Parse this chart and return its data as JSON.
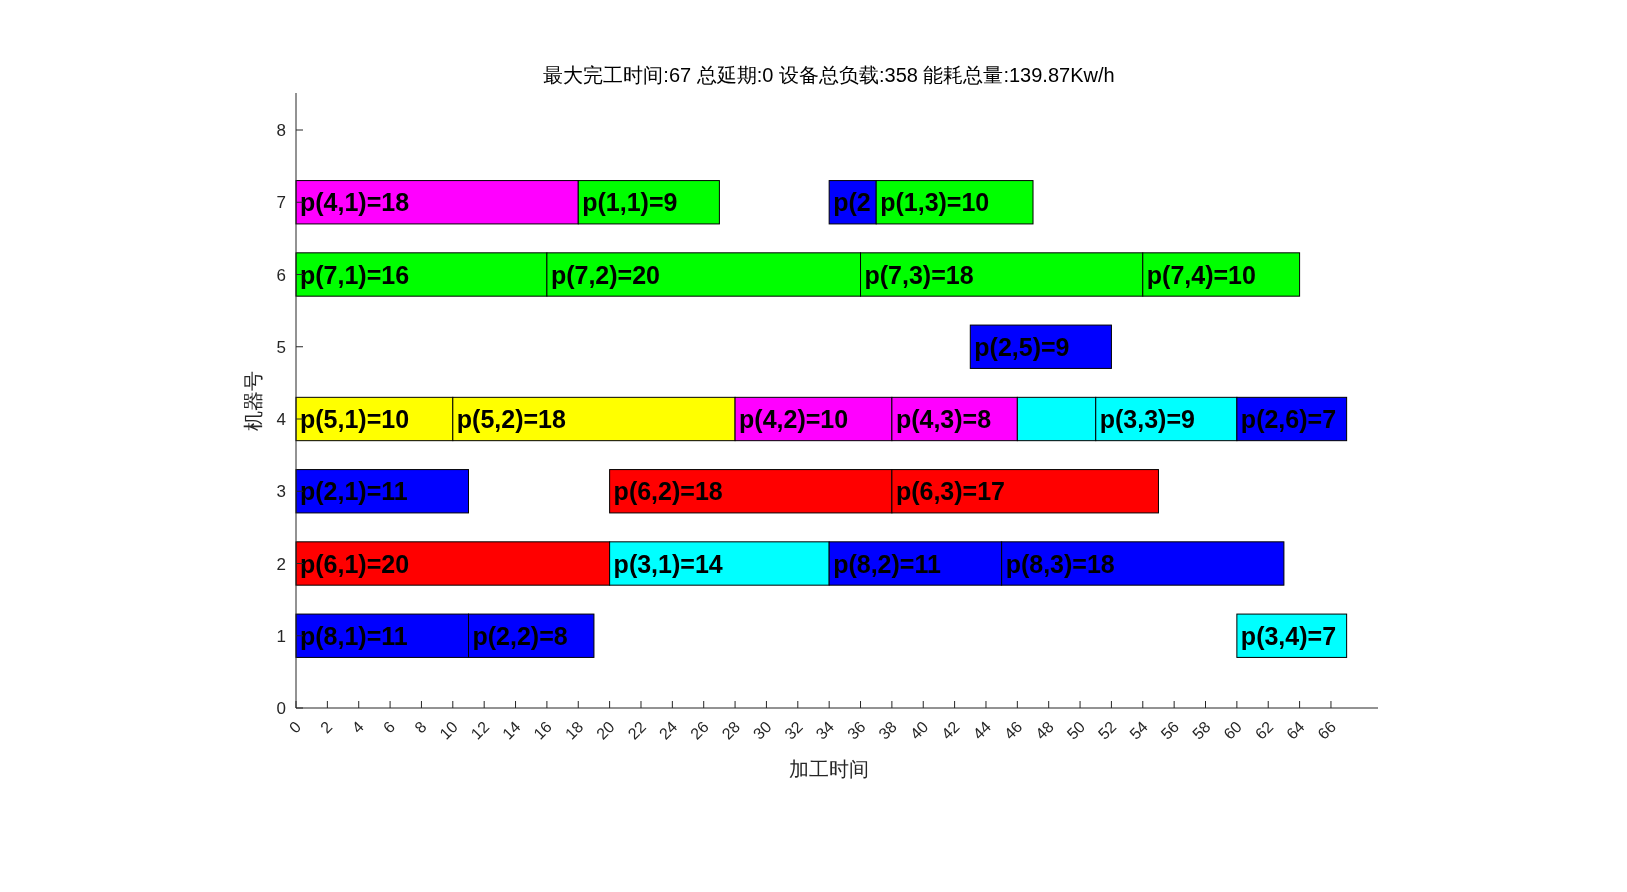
{
  "chart_data": {
    "type": "bar",
    "orientation": "horizontal",
    "title": "最大完工时间:67  总延期:0 设备总负载:358 能耗总量:139.87Kw/h",
    "xlabel": "加工时间",
    "ylabel": "机器号",
    "categories": [
      "8",
      "7",
      "6",
      "5",
      "4",
      "3",
      "2",
      "1",
      "0"
    ],
    "xlim": [
      0,
      69
    ],
    "xticks": [
      0,
      2,
      4,
      6,
      8,
      10,
      12,
      14,
      16,
      18,
      20,
      22,
      24,
      26,
      28,
      30,
      32,
      34,
      36,
      38,
      40,
      42,
      44,
      46,
      48,
      50,
      52,
      54,
      56,
      58,
      60,
      62,
      64,
      66
    ],
    "series": [
      {
        "color": "#ff00ff",
        "values": [
          null,
          18,
          null,
          null,
          null,
          null,
          null,
          null,
          null
        ],
        "base": [
          null,
          0,
          null,
          null,
          null,
          null,
          null,
          null,
          null
        ],
        "value_labels": [
          null,
          "p(4,1)=18",
          null,
          null,
          null,
          null,
          null,
          null,
          null
        ]
      },
      {
        "color": "#00ff00",
        "values": [
          null,
          9,
          null,
          null,
          null,
          null,
          null,
          null,
          null
        ],
        "base": [
          null,
          18,
          null,
          null,
          null,
          null,
          null,
          null,
          null
        ],
        "value_labels": [
          null,
          "p(1,1)=9",
          null,
          null,
          null,
          null,
          null,
          null,
          null
        ]
      },
      {
        "color": "#0000ff",
        "values": [
          null,
          3,
          null,
          null,
          null,
          null,
          null,
          null,
          null
        ],
        "base": [
          null,
          34,
          null,
          null,
          null,
          null,
          null,
          null,
          null
        ],
        "value_labels": [
          null,
          "p(2",
          null,
          null,
          null,
          null,
          null,
          null,
          null
        ]
      },
      {
        "color": "#00ff00",
        "values": [
          null,
          10,
          null,
          null,
          null,
          null,
          null,
          null,
          null
        ],
        "base": [
          null,
          37,
          null,
          null,
          null,
          null,
          null,
          null,
          null
        ],
        "value_labels": [
          null,
          "p(1,3)=10",
          null,
          null,
          null,
          null,
          null,
          null,
          null
        ]
      },
      {
        "color": "#00ff00",
        "values": [
          null,
          null,
          16,
          null,
          null,
          null,
          null,
          null,
          null
        ],
        "base": [
          null,
          null,
          0,
          null,
          null,
          null,
          null,
          null,
          null
        ],
        "value_labels": [
          null,
          null,
          "p(7,1)=16",
          null,
          null,
          null,
          null,
          null,
          null
        ]
      },
      {
        "color": "#00ff00",
        "values": [
          null,
          null,
          20,
          null,
          null,
          null,
          null,
          null,
          null
        ],
        "base": [
          null,
          null,
          16,
          null,
          null,
          null,
          null,
          null,
          null
        ],
        "value_labels": [
          null,
          null,
          "p(7,2)=20",
          null,
          null,
          null,
          null,
          null,
          null
        ]
      },
      {
        "color": "#00ff00",
        "values": [
          null,
          null,
          18,
          null,
          null,
          null,
          null,
          null,
          null
        ],
        "base": [
          null,
          null,
          36,
          null,
          null,
          null,
          null,
          null,
          null
        ],
        "value_labels": [
          null,
          null,
          "p(7,3)=18",
          null,
          null,
          null,
          null,
          null,
          null
        ]
      },
      {
        "color": "#00ff00",
        "values": [
          null,
          null,
          10,
          null,
          null,
          null,
          null,
          null,
          null
        ],
        "base": [
          null,
          null,
          54,
          null,
          null,
          null,
          null,
          null,
          null
        ],
        "value_labels": [
          null,
          null,
          "p(7,4)=10",
          null,
          null,
          null,
          null,
          null,
          null
        ]
      },
      {
        "color": "#0000ff",
        "values": [
          null,
          null,
          null,
          9,
          null,
          null,
          null,
          null,
          null
        ],
        "base": [
          null,
          null,
          null,
          43,
          null,
          null,
          null,
          null,
          null
        ],
        "value_labels": [
          null,
          null,
          null,
          "p(2,5)=9",
          null,
          null,
          null,
          null,
          null
        ]
      },
      {
        "color": "#ffff00",
        "values": [
          null,
          null,
          null,
          null,
          10,
          null,
          null,
          null,
          null
        ],
        "base": [
          null,
          null,
          null,
          null,
          0,
          null,
          null,
          null,
          null
        ],
        "value_labels": [
          null,
          null,
          null,
          null,
          "p(5,1)=10",
          null,
          null,
          null,
          null
        ]
      },
      {
        "color": "#ffff00",
        "values": [
          null,
          null,
          null,
          null,
          18,
          null,
          null,
          null,
          null
        ],
        "base": [
          null,
          null,
          null,
          null,
          10,
          null,
          null,
          null,
          null
        ],
        "value_labels": [
          null,
          null,
          null,
          null,
          "p(5,2)=18",
          null,
          null,
          null,
          null
        ]
      },
      {
        "color": "#ff00ff",
        "values": [
          null,
          null,
          null,
          null,
          10,
          null,
          null,
          null,
          null
        ],
        "base": [
          null,
          null,
          null,
          null,
          28,
          null,
          null,
          null,
          null
        ],
        "value_labels": [
          null,
          null,
          null,
          null,
          "p(4,2)=10",
          null,
          null,
          null,
          null
        ]
      },
      {
        "color": "#ff00ff",
        "values": [
          null,
          null,
          null,
          null,
          8,
          null,
          null,
          null,
          null
        ],
        "base": [
          null,
          null,
          null,
          null,
          38,
          null,
          null,
          null,
          null
        ],
        "value_labels": [
          null,
          null,
          null,
          null,
          "p(4,3)=8",
          null,
          null,
          null,
          null
        ]
      },
      {
        "color": "#00ffff",
        "values": [
          null,
          null,
          null,
          null,
          5,
          null,
          null,
          null,
          null
        ],
        "base": [
          null,
          null,
          null,
          null,
          46,
          null,
          null,
          null,
          null
        ]
      },
      {
        "color": "#00ffff",
        "values": [
          null,
          null,
          null,
          null,
          9,
          null,
          null,
          null,
          null
        ],
        "base": [
          null,
          null,
          null,
          null,
          51,
          null,
          null,
          null,
          null
        ],
        "value_labels": [
          null,
          null,
          null,
          null,
          "p(3,3)=9",
          null,
          null,
          null,
          null
        ]
      },
      {
        "color": "#0000ff",
        "values": [
          null,
          null,
          null,
          null,
          7,
          null,
          null,
          null,
          null
        ],
        "base": [
          null,
          null,
          null,
          null,
          60,
          null,
          null,
          null,
          null
        ],
        "value_labels": [
          null,
          null,
          null,
          null,
          "p(2,6)=7",
          null,
          null,
          null,
          null
        ]
      },
      {
        "color": "#0000ff",
        "values": [
          null,
          null,
          null,
          null,
          null,
          11,
          null,
          null,
          null
        ],
        "base": [
          null,
          null,
          null,
          null,
          null,
          0,
          null,
          null,
          null
        ],
        "value_labels": [
          null,
          null,
          null,
          null,
          null,
          "p(2,1)=11",
          null,
          null,
          null
        ]
      },
      {
        "color": "#ff0000",
        "values": [
          null,
          null,
          null,
          null,
          null,
          18,
          null,
          null,
          null
        ],
        "base": [
          null,
          null,
          null,
          null,
          null,
          20,
          null,
          null,
          null
        ],
        "value_labels": [
          null,
          null,
          null,
          null,
          null,
          "p(6,2)=18",
          null,
          null,
          null
        ]
      },
      {
        "color": "#ff0000",
        "values": [
          null,
          null,
          null,
          null,
          null,
          17,
          null,
          null,
          null
        ],
        "base": [
          null,
          null,
          null,
          null,
          null,
          38,
          null,
          null,
          null
        ],
        "value_labels": [
          null,
          null,
          null,
          null,
          null,
          "p(6,3)=17",
          null,
          null,
          null
        ]
      },
      {
        "color": "#ff0000",
        "values": [
          null,
          null,
          null,
          null,
          null,
          null,
          20,
          null,
          null
        ],
        "base": [
          null,
          null,
          null,
          null,
          null,
          null,
          0,
          null,
          null
        ],
        "value_labels": [
          null,
          null,
          null,
          null,
          null,
          null,
          "p(6,1)=20",
          null,
          null
        ]
      },
      {
        "color": "#00ffff",
        "values": [
          null,
          null,
          null,
          null,
          null,
          null,
          14,
          null,
          null
        ],
        "base": [
          null,
          null,
          null,
          null,
          null,
          null,
          20,
          null,
          null
        ],
        "value_labels": [
          null,
          null,
          null,
          null,
          null,
          null,
          "p(3,1)=14",
          null,
          null
        ]
      },
      {
        "color": "#0000ff",
        "values": [
          null,
          null,
          null,
          null,
          null,
          null,
          11,
          null,
          null
        ],
        "base": [
          null,
          null,
          null,
          null,
          null,
          null,
          34,
          null,
          null
        ],
        "value_labels": [
          null,
          null,
          null,
          null,
          null,
          null,
          "p(8,2)=11",
          null,
          null
        ]
      },
      {
        "color": "#0000ff",
        "values": [
          null,
          null,
          null,
          null,
          null,
          null,
          18,
          null,
          null
        ],
        "base": [
          null,
          null,
          null,
          null,
          null,
          null,
          45,
          null,
          null
        ],
        "value_labels": [
          null,
          null,
          null,
          null,
          null,
          null,
          "p(8,3)=18",
          null,
          null
        ]
      },
      {
        "color": "#0000ff",
        "values": [
          null,
          null,
          null,
          null,
          null,
          null,
          null,
          11,
          null
        ],
        "base": [
          null,
          null,
          null,
          null,
          null,
          null,
          null,
          0,
          null
        ],
        "value_labels": [
          null,
          null,
          null,
          null,
          null,
          null,
          null,
          "p(8,1)=11",
          null
        ]
      },
      {
        "color": "#0000ff",
        "values": [
          null,
          null,
          null,
          null,
          null,
          null,
          null,
          8,
          null
        ],
        "base": [
          null,
          null,
          null,
          null,
          null,
          null,
          null,
          11,
          null
        ],
        "value_labels": [
          null,
          null,
          null,
          null,
          null,
          null,
          null,
          "p(2,2)=8",
          null
        ]
      },
      {
        "color": "#00ffff",
        "values": [
          null,
          null,
          null,
          null,
          null,
          null,
          null,
          7,
          null
        ],
        "base": [
          null,
          null,
          null,
          null,
          null,
          null,
          null,
          60,
          null
        ],
        "value_labels": [
          null,
          null,
          null,
          null,
          null,
          null,
          null,
          "p(3,4)=7",
          null
        ]
      }
    ]
  }
}
